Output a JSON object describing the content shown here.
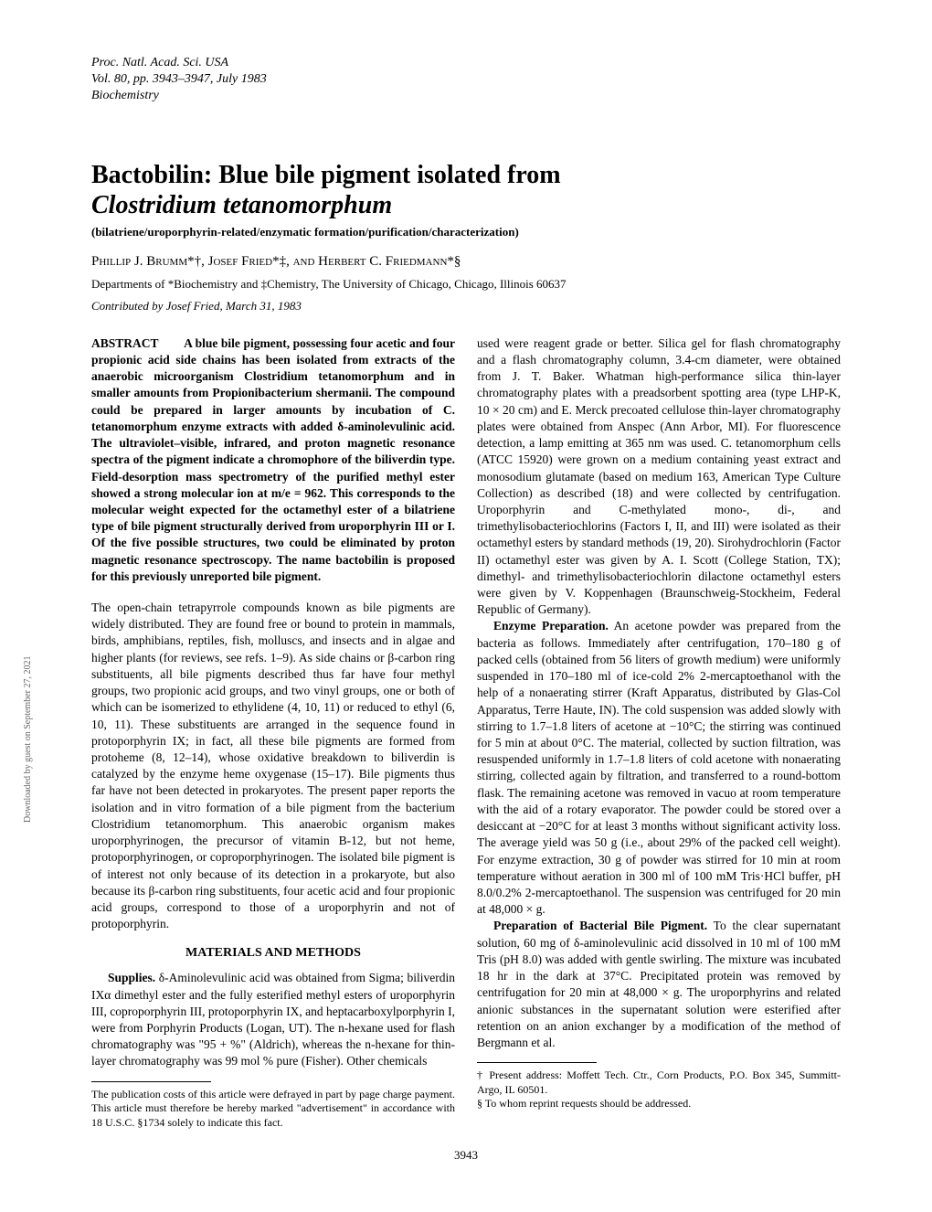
{
  "header": {
    "line1": "Proc. Natl. Acad. Sci. USA",
    "line2": "Vol. 80, pp. 3943–3947, July 1983",
    "line3": "Biochemistry"
  },
  "title": {
    "line1": "Bactobilin: Blue bile pigment isolated from",
    "line2_italic": "Clostridium tetanomorphum"
  },
  "subtitle": "(bilatriene/uroporphyrin-related/enzymatic formation/purification/characterization)",
  "authors": "Phillip J. Brumm*†, Josef Fried*‡, and Herbert C. Friedmann*§",
  "affiliation": "Departments of *Biochemistry and ‡Chemistry, The University of Chicago, Chicago, Illinois 60637",
  "contributed": "Contributed by Josef Fried, March 31, 1983",
  "abstract": {
    "label": "ABSTRACT",
    "text": "A blue bile pigment, possessing four acetic and four propionic acid side chains has been isolated from extracts of the anaerobic microorganism Clostridium tetanomorphum and in smaller amounts from Propionibacterium shermanii. The compound could be prepared in larger amounts by incubation of C. tetanomorphum enzyme extracts with added δ-aminolevulinic acid. The ultraviolet–visible, infrared, and proton magnetic resonance spectra of the pigment indicate a chromophore of the biliverdin type. Field-desorption mass spectrometry of the purified methyl ester showed a strong molecular ion at m/e = 962. This corresponds to the molecular weight expected for the octamethyl ester of a bilatriene type of bile pigment structurally derived from uroporphyrin III or I. Of the five possible structures, two could be eliminated by proton magnetic resonance spectroscopy. The name bactobilin is proposed for this previously unreported bile pigment."
  },
  "left_column": {
    "intro": "The open-chain tetrapyrrole compounds known as bile pigments are widely distributed. They are found free or bound to protein in mammals, birds, amphibians, reptiles, fish, molluscs, and insects and in algae and higher plants (for reviews, see refs. 1–9). As side chains or β-carbon ring substituents, all bile pigments described thus far have four methyl groups, two propionic acid groups, and two vinyl groups, one or both of which can be isomerized to ethylidene (4, 10, 11) or reduced to ethyl (6, 10, 11). These substituents are arranged in the sequence found in protoporphyrin IX; in fact, all these bile pigments are formed from protoheme (8, 12–14), whose oxidative breakdown to biliverdin is catalyzed by the enzyme heme oxygenase (15–17). Bile pigments thus far have not been detected in prokaryotes. The present paper reports the isolation and in vitro formation of a bile pigment from the bacterium Clostridium tetanomorphum. This anaerobic organism makes uroporphyrinogen, the precursor of vitamin B-12, but not heme, protoporphyrinogen, or coproporphyrinogen. The isolated bile pigment is of interest not only because of its detection in a prokaryote, but also because its β-carbon ring substituents, four acetic acid and four propionic acid groups, correspond to those of a uroporphyrin and not of protoporphyrin.",
    "section_heading": "MATERIALS AND METHODS",
    "supplies_label": "Supplies.",
    "supplies_text": " δ-Aminolevulinic acid was obtained from Sigma; biliverdin IXα dimethyl ester and the fully esterified methyl esters of uroporphyrin III, coproporphyrin III, protoporphyrin IX, and heptacarboxylporphyrin I, were from Porphyrin Products (Logan, UT). The n-hexane used for flash chromatography was \"95 + %\" (Aldrich), whereas the n-hexane for thin-layer chromatography was 99 mol % pure (Fisher). Other chemicals",
    "footnote": "The publication costs of this article were defrayed in part by page charge payment. This article must therefore be hereby marked \"advertisement\" in accordance with 18 U.S.C. §1734 solely to indicate this fact."
  },
  "right_column": {
    "para1": "used were reagent grade or better. Silica gel for flash chromatography and a flash chromatography column, 3.4-cm diameter, were obtained from J. T. Baker. Whatman high-performance silica thin-layer chromatography plates with a preadsorbent spotting area (type LHP-K, 10 × 20 cm) and E. Merck precoated cellulose thin-layer chromatography plates were obtained from Anspec (Ann Arbor, MI). For fluorescence detection, a lamp emitting at 365 nm was used. C. tetanomorphum cells (ATCC 15920) were grown on a medium containing yeast extract and monosodium glutamate (based on medium 163, American Type Culture Collection) as described (18) and were collected by centrifugation. Uroporphyrin and C-methylated mono-, di-, and trimethylisobacteriochlorins (Factors I, II, and III) were isolated as their octamethyl esters by standard methods (19, 20). Sirohydrochlorin (Factor II) octamethyl ester was given by A. I. Scott (College Station, TX); dimethyl- and trimethylisobacteriochlorin dilactone octamethyl esters were given by V. Koppenhagen (Braunschweig-Stockheim, Federal Republic of Germany).",
    "enzyme_label": "Enzyme Preparation.",
    "enzyme_text": " An acetone powder was prepared from the bacteria as follows. Immediately after centrifugation, 170–180 g of packed cells (obtained from 56 liters of growth medium) were uniformly suspended in 170–180 ml of ice-cold 2% 2-mercaptoethanol with the help of a nonaerating stirrer (Kraft Apparatus, distributed by Glas-Col Apparatus, Terre Haute, IN). The cold suspension was added slowly with stirring to 1.7–1.8 liters of acetone at −10°C; the stirring was continued for 5 min at about 0°C. The material, collected by suction filtration, was resuspended uniformly in 1.7–1.8 liters of cold acetone with nonaerating stirring, collected again by filtration, and transferred to a round-bottom flask. The remaining acetone was removed in vacuo at room temperature with the aid of a rotary evaporator. The powder could be stored over a desiccant at −20°C for at least 3 months without significant activity loss. The average yield was 50 g (i.e., about 29% of the packed cell weight). For enzyme extraction, 30 g of powder was stirred for 10 min at room temperature without aeration in 300 ml of 100 mM Tris·HCl buffer, pH 8.0/0.2% 2-mercaptoethanol. The suspension was centrifuged for 20 min at 48,000 × g.",
    "preparation_label": "Preparation of Bacterial Bile Pigment.",
    "preparation_text": " To the clear supernatant solution, 60 mg of δ-aminolevulinic acid dissolved in 10 ml of 100 mM Tris (pH 8.0) was added with gentle swirling. The mixture was incubated 18 hr in the dark at 37°C. Precipitated protein was removed by centrifugation for 20 min at 48,000 × g. The uroporphyrins and related anionic substances in the supernatant solution were esterified after retention on an anion exchanger by a modification of the method of Bergmann et al.",
    "footnote1": "† Present address: Moffett Tech. Ctr., Corn Products, P.O. Box 345, Summitt-Argo, IL 60501.",
    "footnote2": "§ To whom reprint requests should be addressed."
  },
  "page_number": "3943",
  "side_text": "Downloaded by guest on September 27, 2021"
}
